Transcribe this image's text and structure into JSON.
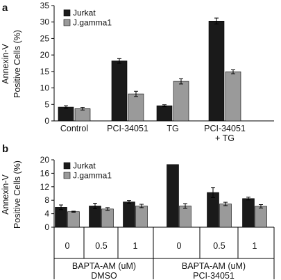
{
  "colors": {
    "Jurkat": "#1a1a1a",
    "J.gamma1": "#9a9a9a"
  },
  "chart_data": [
    {
      "panel": "a",
      "type": "bar",
      "ylabel": [
        "Annexin-V",
        "Positive Cells (%)"
      ],
      "ylim": [
        0,
        35
      ],
      "yticks": [
        0,
        5,
        10,
        15,
        20,
        25,
        30,
        35
      ],
      "categories": [
        {
          "lines": [
            "Control"
          ]
        },
        {
          "lines": [
            "PCI-34051"
          ]
        },
        {
          "lines": [
            "TG"
          ]
        },
        {
          "lines": [
            "PCI-34051",
            "+ TG"
          ]
        }
      ],
      "legend": [
        "Jurkat",
        "J.gamma1"
      ],
      "legend_position": "top-left",
      "series": [
        {
          "name": "Jurkat",
          "values": [
            4.2,
            18.2,
            4.6,
            30.3
          ],
          "errors": [
            0.4,
            0.7,
            0.3,
            0.9
          ]
        },
        {
          "name": "J.gamma1",
          "values": [
            3.7,
            8.2,
            12.0,
            14.9
          ],
          "errors": [
            0.4,
            0.8,
            0.8,
            0.6
          ]
        }
      ]
    },
    {
      "panel": "b",
      "type": "bar",
      "ylabel": [
        "Annexin-V",
        "Positive Cells (%)"
      ],
      "ylim": [
        0,
        20
      ],
      "yticks": [
        0,
        4,
        8,
        12,
        16,
        20
      ],
      "categories": [
        {
          "lines": [
            "0"
          ]
        },
        {
          "lines": [
            "0.5"
          ]
        },
        {
          "lines": [
            "1"
          ]
        },
        {
          "lines": [
            "0"
          ]
        },
        {
          "lines": [
            "0.5"
          ]
        },
        {
          "lines": [
            "1"
          ]
        }
      ],
      "groups": [
        {
          "lines": [
            "BAPTA-AM (uM)",
            "DMSO"
          ],
          "count": 3
        },
        {
          "lines": [
            "BAPTA-AM (uM)",
            "PCI-34051"
          ],
          "count": 3
        }
      ],
      "legend": [
        "Jurkat",
        "J.gamma1"
      ],
      "legend_position": "top-left",
      "series": [
        {
          "name": "Jurkat",
          "values": [
            5.9,
            6.3,
            7.5,
            18.6,
            10.3,
            8.5
          ],
          "errors": [
            0.7,
            0.8,
            0.4,
            0.0,
            1.5,
            0.4
          ]
        },
        {
          "name": "J.gamma1",
          "values": [
            4.6,
            5.4,
            6.3,
            6.3,
            6.9,
            6.2
          ],
          "errors": [
            0.15,
            0.4,
            0.5,
            0.7,
            0.5,
            0.5
          ]
        }
      ]
    }
  ]
}
